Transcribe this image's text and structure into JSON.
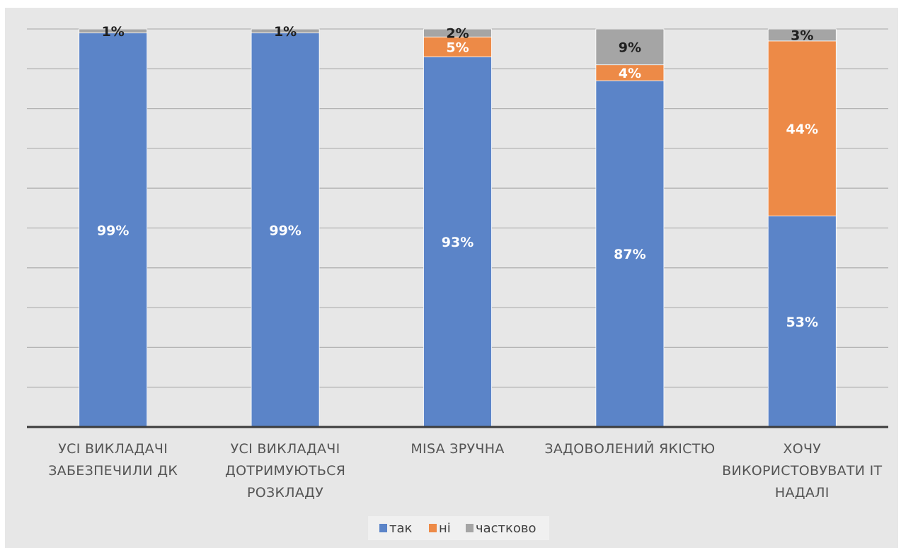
{
  "chart_data": {
    "type": "bar",
    "stacked": true,
    "title": "",
    "xlabel": "",
    "ylabel": "",
    "ylim": [
      0,
      100
    ],
    "grid": true,
    "legend_position": "bottom",
    "categories": [
      [
        "УСІ ВИКЛАДАЧІ",
        "ЗАБЕЗПЕЧИЛИ ДК"
      ],
      [
        "УСІ ВИКЛАДАЧІ",
        "ДОТРИМУЮТЬСЯ",
        "РОЗКЛАДУ"
      ],
      [
        "MISA ЗРУЧНА"
      ],
      [
        "ЗАДОВОЛЕНИЙ ЯКІСТЮ"
      ],
      [
        "ХОЧУ",
        "ВИКОРИСТОВУВАТИ ІТ",
        "НАДАЛІ"
      ]
    ],
    "series": [
      {
        "name": "так",
        "color": "#5b84c8",
        "label_color": "#ffffff",
        "values": [
          99,
          99,
          93,
          87,
          53
        ]
      },
      {
        "name": "ні",
        "color": "#ed8a47",
        "label_color": "#ffffff",
        "values": [
          0,
          0,
          5,
          4,
          44
        ]
      },
      {
        "name": "частково",
        "color": "#a5a5a5",
        "label_color": "#1f1f1f",
        "values": [
          1,
          1,
          2,
          9,
          3
        ]
      }
    ]
  }
}
